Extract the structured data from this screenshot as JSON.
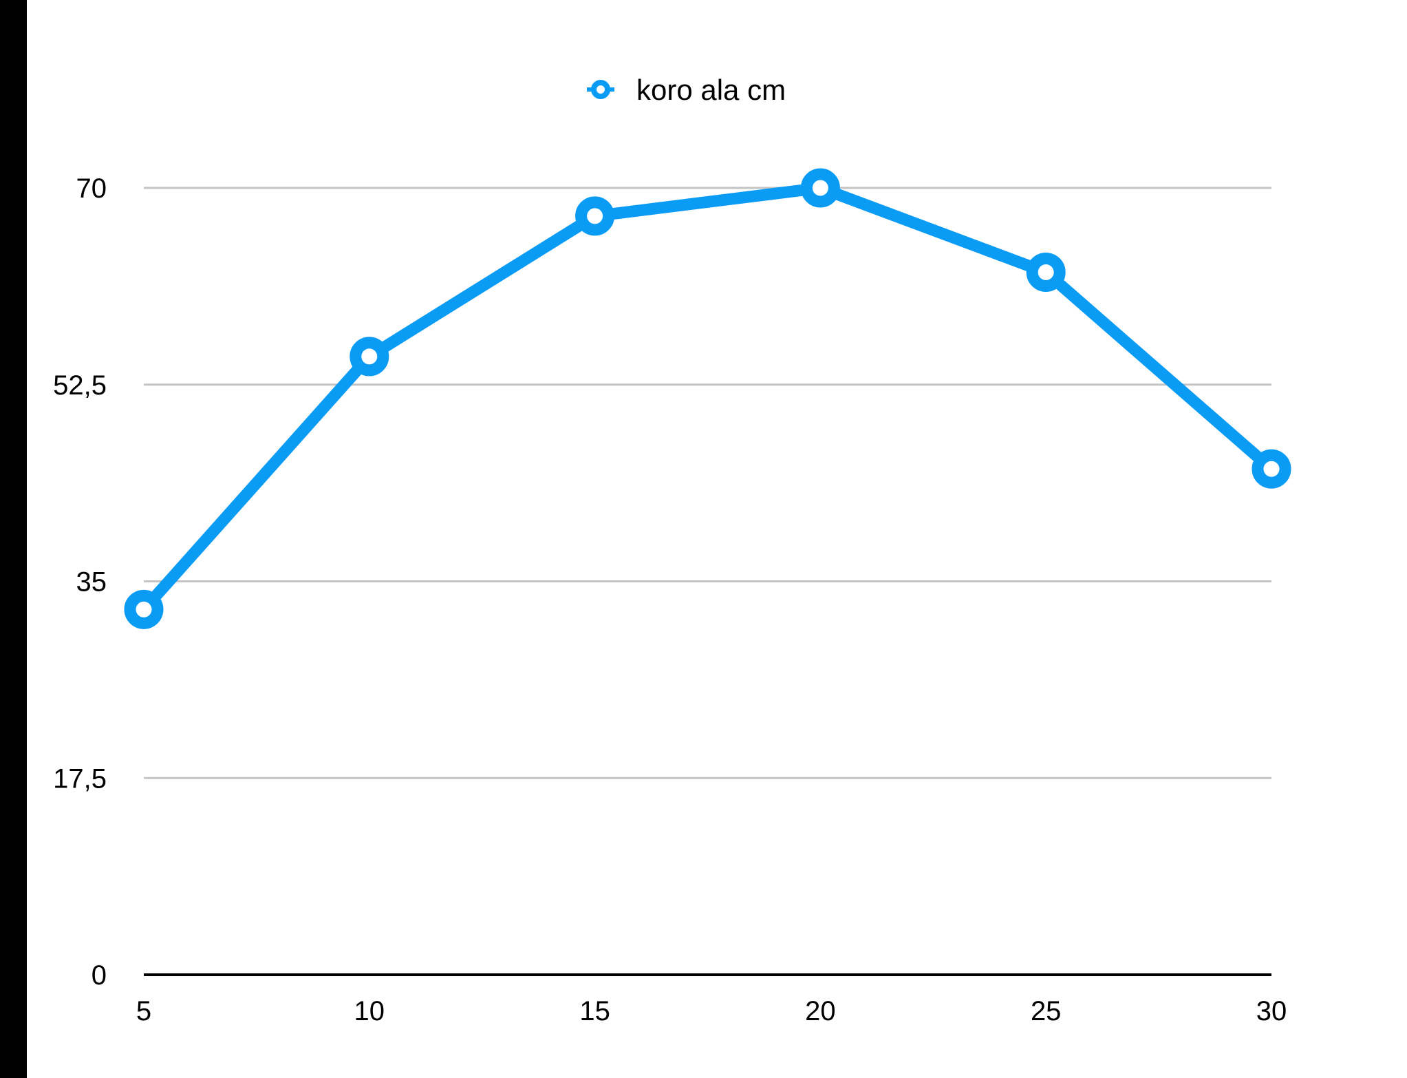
{
  "chart_data": {
    "type": "line",
    "title": "",
    "xlabel": "",
    "ylabel": "",
    "x": [
      5,
      10,
      15,
      20,
      25,
      30
    ],
    "x_tick_labels": [
      "5",
      "10",
      "15",
      "20",
      "25",
      "30"
    ],
    "y_ticks": [
      0,
      17.5,
      35,
      52.5,
      70
    ],
    "y_tick_labels": [
      "0",
      "17,5",
      "35",
      "52,5",
      "70"
    ],
    "ylim": [
      0,
      70
    ],
    "xlim": [
      5,
      30
    ],
    "grid": "horizontal",
    "legend_position": "top-center",
    "series": [
      {
        "name": "koro ala cm",
        "color": "#0a9bf5",
        "marker": "hollow-circle",
        "values": [
          32.5,
          55,
          67.5,
          70,
          62.5,
          45
        ]
      }
    ]
  }
}
